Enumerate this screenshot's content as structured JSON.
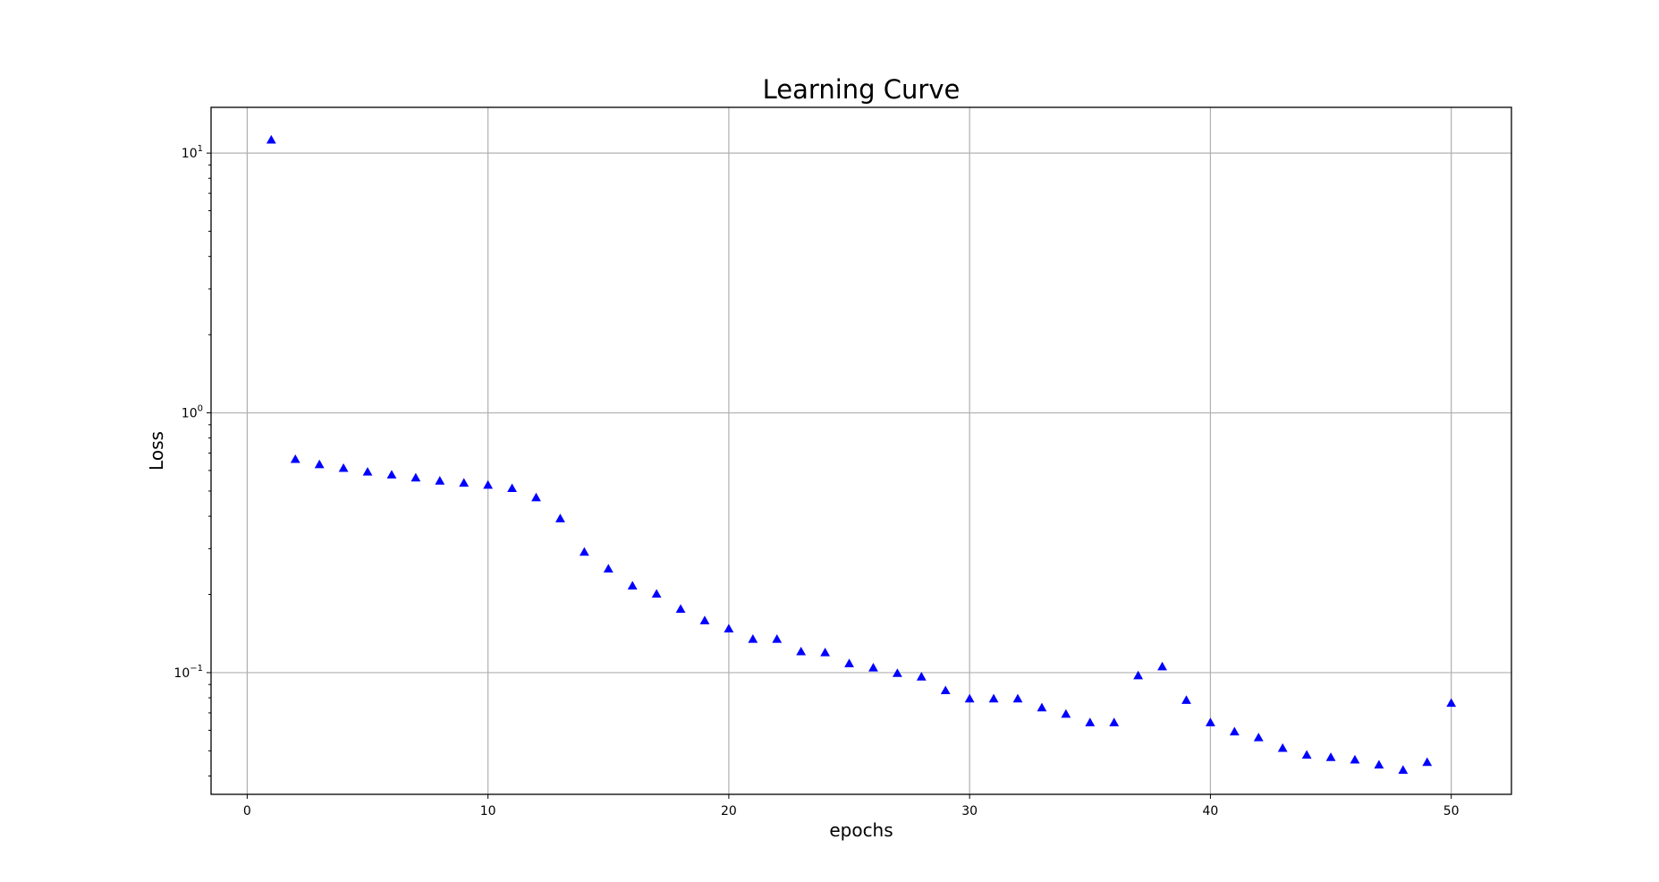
{
  "chart_data": {
    "type": "scatter",
    "title": "Learning Curve",
    "xlabel": "epochs",
    "ylabel": "Loss",
    "xlim": [
      -1.5,
      52.5
    ],
    "ylim": [
      0.034,
      15.0
    ],
    "yscale": "log",
    "grid": true,
    "marker": "triangle-up",
    "marker_color": "#0000ff",
    "x_ticks": [
      0,
      10,
      20,
      30,
      40,
      50
    ],
    "x_tick_labels": [
      "0",
      "10",
      "20",
      "30",
      "40",
      "50"
    ],
    "y_ticks": [
      0.1,
      1,
      10
    ],
    "y_tick_labels": [
      {
        "base": "10",
        "exp": "−1"
      },
      {
        "base": "10",
        "exp": "0"
      },
      {
        "base": "10",
        "exp": "1"
      }
    ],
    "x": [
      1,
      2,
      3,
      4,
      5,
      6,
      7,
      8,
      9,
      10,
      11,
      12,
      13,
      14,
      15,
      16,
      17,
      18,
      19,
      20,
      21,
      22,
      23,
      24,
      25,
      26,
      27,
      28,
      29,
      30,
      31,
      32,
      33,
      34,
      35,
      36,
      37,
      38,
      39,
      40,
      41,
      42,
      43,
      44,
      45,
      46,
      47,
      48,
      49,
      50
    ],
    "y": [
      11.2,
      0.66,
      0.63,
      0.61,
      0.59,
      0.575,
      0.56,
      0.545,
      0.535,
      0.525,
      0.51,
      0.47,
      0.39,
      0.29,
      0.25,
      0.215,
      0.2,
      0.175,
      0.158,
      0.147,
      0.134,
      0.134,
      0.12,
      0.119,
      0.108,
      0.104,
      0.099,
      0.096,
      0.085,
      0.079,
      0.079,
      0.079,
      0.073,
      0.069,
      0.064,
      0.064,
      0.097,
      0.105,
      0.078,
      0.064,
      0.059,
      0.056,
      0.051,
      0.048,
      0.047,
      0.046,
      0.044,
      0.042,
      0.045,
      0.076
    ]
  }
}
